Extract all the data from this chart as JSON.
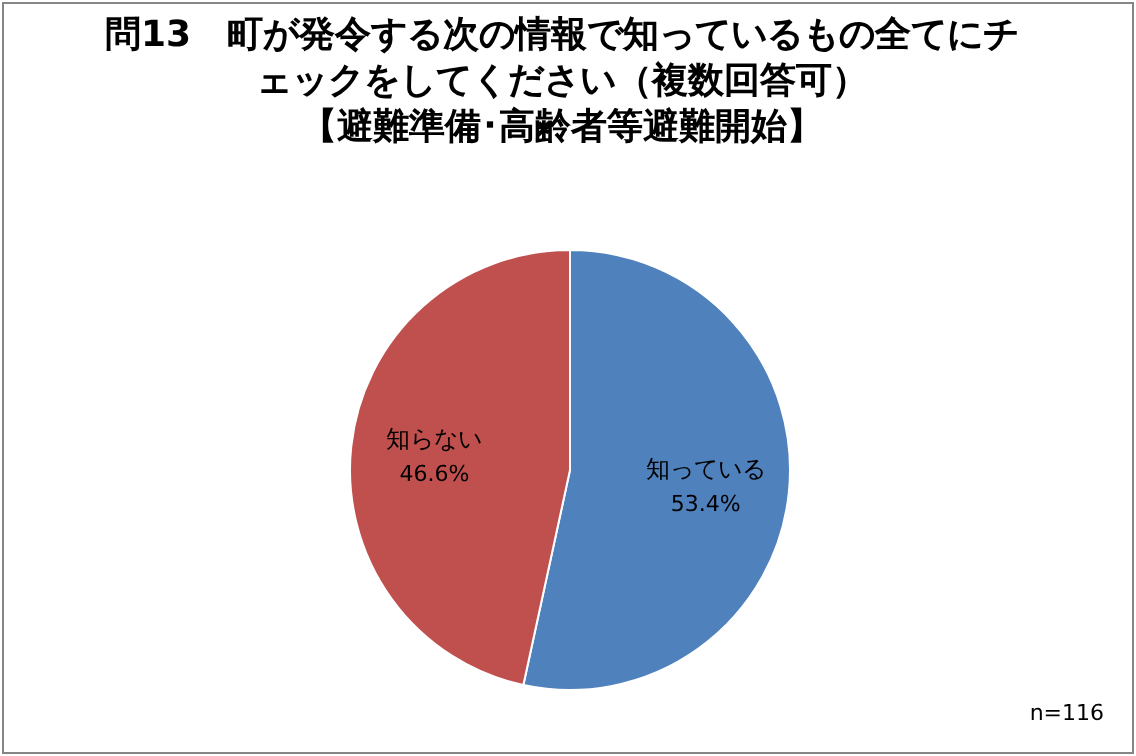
{
  "chart_data": {
    "type": "pie",
    "title": "問13　町が発令する次の情報で知っているもの全てにチェックをしてください（複数回答可）",
    "subtitle": "【避難準備･高齢者等避難開始】",
    "categories": [
      "知っている",
      "知らない"
    ],
    "values": [
      53.4,
      46.6
    ],
    "colors": [
      "#4f81bd",
      "#c0504d"
    ],
    "value_labels": [
      "53.4%",
      "46.6%"
    ],
    "annotations": [
      "n=116"
    ],
    "legend": false
  }
}
